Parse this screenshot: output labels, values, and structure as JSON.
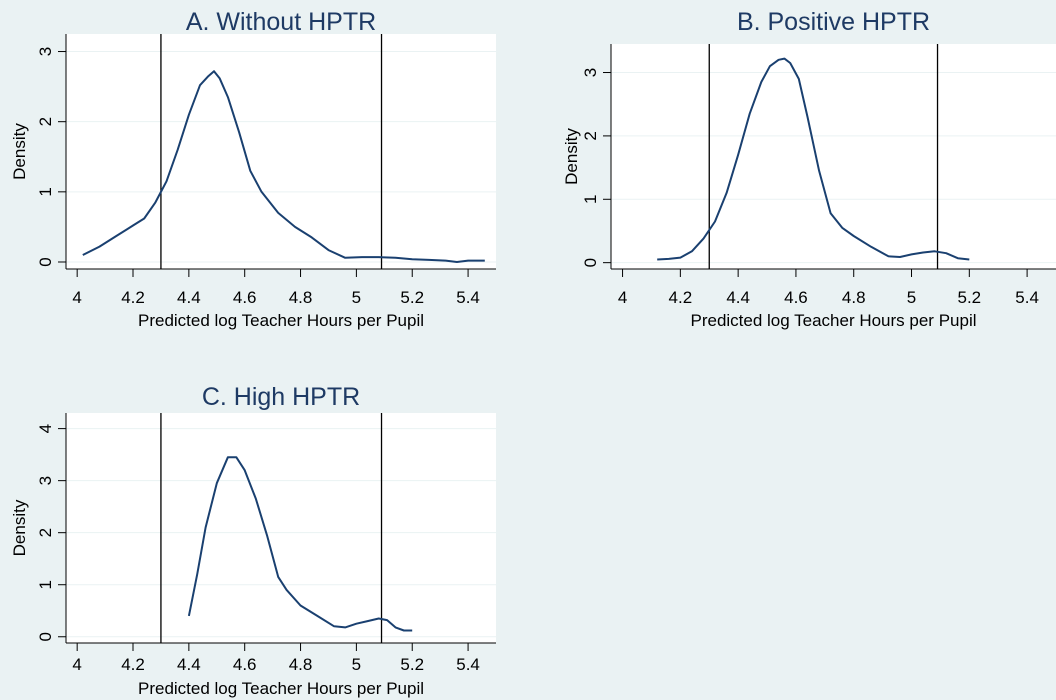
{
  "colors": {
    "background": "#eaf2f3",
    "plot_background": "#ffffff",
    "gridline": "#eaf2f3",
    "line": "#1a4070",
    "title": "#1e3a64",
    "reference_line": "#000000"
  },
  "chart_data": [
    {
      "type": "line",
      "title": "A. Without HPTR",
      "xlabel": "Predicted log Teacher Hours per Pupil",
      "ylabel": "Density",
      "xlim": [
        3.96,
        5.5
      ],
      "ylim": [
        -0.1,
        3.25
      ],
      "xticks": [
        4,
        4.2,
        4.4,
        4.6,
        4.8,
        5,
        5.2,
        5.4
      ],
      "xtick_labels": [
        "4",
        "4.2",
        "4.4",
        "4.6",
        "4.8",
        "5",
        "5.2",
        "5.4"
      ],
      "yticks": [
        0,
        1,
        2,
        3
      ],
      "ytick_labels": [
        "0",
        "1",
        "2",
        "3"
      ],
      "grid": true,
      "reference_lines_x": [
        4.3,
        5.09
      ],
      "series": [
        {
          "x": [
            4.02,
            4.08,
            4.14,
            4.2,
            4.24,
            4.28,
            4.32,
            4.36,
            4.4,
            4.44,
            4.47,
            4.49,
            4.51,
            4.54,
            4.58,
            4.62,
            4.66,
            4.72,
            4.78,
            4.84,
            4.9,
            4.96,
            5.02,
            5.08,
            5.14,
            5.2,
            5.26,
            5.32,
            5.36,
            5.4,
            5.46
          ],
          "y": [
            0.1,
            0.22,
            0.37,
            0.52,
            0.62,
            0.85,
            1.15,
            1.6,
            2.1,
            2.52,
            2.65,
            2.72,
            2.62,
            2.35,
            1.85,
            1.3,
            1.0,
            0.7,
            0.5,
            0.35,
            0.17,
            0.06,
            0.07,
            0.07,
            0.06,
            0.04,
            0.03,
            0.02,
            0.0,
            0.02,
            0.02
          ]
        }
      ]
    },
    {
      "type": "line",
      "title": "B. Positive HPTR",
      "xlabel": "Predicted log Teacher Hours per Pupil",
      "ylabel": "Density",
      "xlim": [
        3.96,
        5.5
      ],
      "ylim": [
        -0.1,
        3.45
      ],
      "xticks": [
        4,
        4.2,
        4.4,
        4.6,
        4.8,
        5,
        5.2,
        5.4
      ],
      "xtick_labels": [
        "4",
        "4.2",
        "4.4",
        "4.6",
        "4.8",
        "5",
        "5.2",
        "5.4"
      ],
      "yticks": [
        0,
        1,
        2,
        3
      ],
      "ytick_labels": [
        "0",
        "1",
        "2",
        "3"
      ],
      "grid": true,
      "reference_lines_x": [
        4.3,
        5.09
      ],
      "series": [
        {
          "x": [
            4.12,
            4.16,
            4.2,
            4.24,
            4.28,
            4.32,
            4.36,
            4.4,
            4.44,
            4.48,
            4.51,
            4.54,
            4.56,
            4.58,
            4.61,
            4.64,
            4.68,
            4.72,
            4.76,
            4.8,
            4.86,
            4.92,
            4.96,
            5.0,
            5.04,
            5.08,
            5.12,
            5.16,
            5.2
          ],
          "y": [
            0.05,
            0.06,
            0.08,
            0.18,
            0.38,
            0.65,
            1.1,
            1.7,
            2.35,
            2.85,
            3.1,
            3.2,
            3.22,
            3.15,
            2.9,
            2.3,
            1.45,
            0.78,
            0.55,
            0.42,
            0.25,
            0.1,
            0.09,
            0.13,
            0.16,
            0.18,
            0.15,
            0.07,
            0.05
          ]
        }
      ]
    },
    {
      "type": "line",
      "title": "C. High HPTR",
      "xlabel": "Predicted log Teacher Hours per Pupil",
      "ylabel": "Density",
      "xlim": [
        3.96,
        5.5
      ],
      "ylim": [
        -0.12,
        4.3
      ],
      "xticks": [
        4,
        4.2,
        4.4,
        4.6,
        4.8,
        5,
        5.2,
        5.4
      ],
      "xtick_labels": [
        "4",
        "4.2",
        "4.4",
        "4.6",
        "4.8",
        "5",
        "5.2",
        "5.4"
      ],
      "yticks": [
        0,
        1,
        2,
        3,
        4
      ],
      "ytick_labels": [
        "0",
        "1",
        "2",
        "3",
        "4"
      ],
      "grid": true,
      "reference_lines_x": [
        4.3,
        5.09
      ],
      "series": [
        {
          "x": [
            4.4,
            4.43,
            4.46,
            4.5,
            4.54,
            4.57,
            4.6,
            4.64,
            4.68,
            4.72,
            4.75,
            4.8,
            4.86,
            4.92,
            4.96,
            5.0,
            5.04,
            5.08,
            5.11,
            5.14,
            5.17,
            5.2
          ],
          "y": [
            0.4,
            1.2,
            2.1,
            2.95,
            3.45,
            3.45,
            3.2,
            2.65,
            1.95,
            1.15,
            0.9,
            0.6,
            0.4,
            0.2,
            0.18,
            0.25,
            0.3,
            0.35,
            0.32,
            0.18,
            0.12,
            0.12
          ]
        }
      ]
    }
  ]
}
